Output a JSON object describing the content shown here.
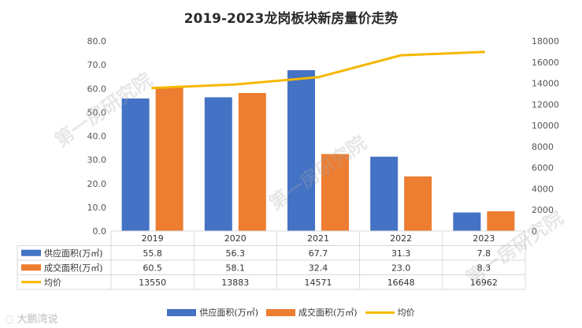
{
  "chart_data": {
    "type": "bar",
    "title": "2019-2023龙岗板块新房量价走势",
    "categories": [
      "2019",
      "2020",
      "2021",
      "2022",
      "2023"
    ],
    "series": [
      {
        "name": "供应面积(万㎡)",
        "type": "bar",
        "axis": "left",
        "color": "#4472C4",
        "values": [
          55.8,
          56.3,
          67.7,
          31.3,
          7.8
        ],
        "labels": [
          "55.8",
          "56.3",
          "67.7",
          "31.3",
          "7.8"
        ]
      },
      {
        "name": "成交面积(万㎡)",
        "type": "bar",
        "axis": "left",
        "color": "#ED7D31",
        "values": [
          60.5,
          58.1,
          32.4,
          23.0,
          8.3
        ],
        "labels": [
          "60.5",
          "58.1",
          "32.4",
          "23.0",
          "8.3"
        ]
      },
      {
        "name": "均价",
        "type": "line",
        "axis": "right",
        "color": "#F5B800",
        "values": [
          13550,
          13883,
          14571,
          16648,
          16962
        ],
        "labels": [
          "13550",
          "13883",
          "14571",
          "16648",
          "16962"
        ]
      }
    ],
    "y_left": {
      "min": 0,
      "max": 80,
      "step": 10,
      "ticks": [
        "0.0",
        "10.0",
        "20.0",
        "30.0",
        "40.0",
        "50.0",
        "60.0",
        "70.0",
        "80.0"
      ]
    },
    "y_right": {
      "min": 0,
      "max": 18000,
      "step": 2000,
      "ticks": [
        "0",
        "2000",
        "4000",
        "6000",
        "8000",
        "10000",
        "12000",
        "14000",
        "16000",
        "18000"
      ]
    },
    "legend_position": "bottom",
    "data_table": true
  },
  "watermark": "第一房研究院",
  "brand": "大鹏湾说"
}
